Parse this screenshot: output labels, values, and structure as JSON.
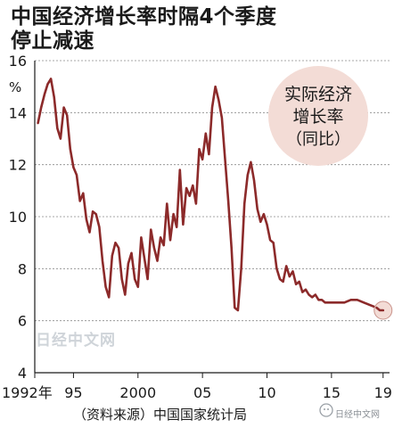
{
  "title": {
    "line1": "中国经济增长率时隔4个季度",
    "line2": "停止减速"
  },
  "source": "（资料来源）中国国家统计局",
  "watermarks": {
    "center": "日经中文网",
    "corner": "日经中文网"
  },
  "colors": {
    "line": "#8c2a2a",
    "bubble": "#f3dcd6",
    "endpoint": "#f3dcd6"
  },
  "chart_data": {
    "type": "line",
    "ylabel": "%",
    "ylim": [
      4,
      16
    ],
    "yticks": [
      4,
      6,
      8,
      10,
      12,
      14,
      16
    ],
    "xlim": [
      1992.0,
      2019.5
    ],
    "xticks": [
      {
        "value": 1992,
        "label": "1992年"
      },
      {
        "value": 1995,
        "label": "95"
      },
      {
        "value": 2000,
        "label": "2000"
      },
      {
        "value": 2005,
        "label": "05"
      },
      {
        "value": 2010,
        "label": "10"
      },
      {
        "value": 2015,
        "label": "15"
      },
      {
        "value": 2019,
        "label": "19"
      }
    ],
    "legend_bubble": {
      "lines": [
        "实际经济",
        "增长率",
        "（同比）"
      ],
      "placement": "top-right"
    },
    "series": [
      {
        "values": [
          [
            1992.25,
            13.6
          ],
          [
            1992.5,
            14.2
          ],
          [
            1992.75,
            14.7
          ],
          [
            1993.0,
            15.1
          ],
          [
            1993.25,
            15.3
          ],
          [
            1993.5,
            14.6
          ],
          [
            1993.75,
            13.4
          ],
          [
            1994.0,
            13.0
          ],
          [
            1994.25,
            14.2
          ],
          [
            1994.5,
            13.9
          ],
          [
            1994.75,
            12.6
          ],
          [
            1995.0,
            11.9
          ],
          [
            1995.25,
            11.6
          ],
          [
            1995.5,
            10.6
          ],
          [
            1995.75,
            10.9
          ],
          [
            1996.0,
            9.9
          ],
          [
            1996.25,
            9.4
          ],
          [
            1996.5,
            10.2
          ],
          [
            1996.75,
            10.1
          ],
          [
            1997.0,
            9.6
          ],
          [
            1997.25,
            8.3
          ],
          [
            1997.5,
            7.3
          ],
          [
            1997.75,
            6.9
          ],
          [
            1998.0,
            8.5
          ],
          [
            1998.25,
            9.0
          ],
          [
            1998.5,
            8.8
          ],
          [
            1998.75,
            7.6
          ],
          [
            1999.0,
            7.0
          ],
          [
            1999.25,
            8.2
          ],
          [
            1999.5,
            8.6
          ],
          [
            1999.75,
            7.6
          ],
          [
            2000.0,
            7.3
          ],
          [
            2000.25,
            9.2
          ],
          [
            2000.5,
            8.4
          ],
          [
            2000.75,
            7.6
          ],
          [
            2001.0,
            9.5
          ],
          [
            2001.25,
            8.8
          ],
          [
            2001.5,
            8.3
          ],
          [
            2001.75,
            9.2
          ],
          [
            2002.0,
            8.9
          ],
          [
            2002.25,
            10.5
          ],
          [
            2002.5,
            9.1
          ],
          [
            2002.75,
            10.1
          ],
          [
            2003.0,
            9.6
          ],
          [
            2003.25,
            11.8
          ],
          [
            2003.5,
            9.7
          ],
          [
            2003.75,
            11.1
          ],
          [
            2004.0,
            10.8
          ],
          [
            2004.25,
            11.2
          ],
          [
            2004.5,
            10.5
          ],
          [
            2004.75,
            12.6
          ],
          [
            2005.0,
            12.2
          ],
          [
            2005.25,
            13.2
          ],
          [
            2005.5,
            12.4
          ],
          [
            2005.75,
            14.2
          ],
          [
            2006.0,
            15.0
          ],
          [
            2006.25,
            14.5
          ],
          [
            2006.5,
            13.8
          ],
          [
            2006.75,
            12.2
          ],
          [
            2007.0,
            10.6
          ],
          [
            2007.25,
            8.8
          ],
          [
            2007.5,
            6.5
          ],
          [
            2007.75,
            6.4
          ],
          [
            2008.0,
            8.0
          ],
          [
            2008.25,
            10.5
          ],
          [
            2008.5,
            11.6
          ],
          [
            2008.75,
            12.1
          ],
          [
            2009.0,
            11.4
          ],
          [
            2009.25,
            10.3
          ],
          [
            2009.5,
            9.8
          ],
          [
            2009.75,
            10.1
          ],
          [
            2010.0,
            9.7
          ],
          [
            2010.25,
            9.1
          ],
          [
            2010.5,
            9.0
          ],
          [
            2010.75,
            8.0
          ],
          [
            2011.0,
            7.6
          ],
          [
            2011.25,
            7.5
          ],
          [
            2011.5,
            8.1
          ],
          [
            2011.75,
            7.7
          ],
          [
            2012.0,
            7.9
          ],
          [
            2012.25,
            7.4
          ],
          [
            2012.5,
            7.5
          ],
          [
            2012.75,
            7.1
          ],
          [
            2013.0,
            7.2
          ],
          [
            2013.25,
            7.0
          ],
          [
            2013.5,
            6.9
          ],
          [
            2013.75,
            7.0
          ],
          [
            2014.0,
            6.8
          ],
          [
            2014.25,
            6.8
          ],
          [
            2014.5,
            6.7
          ],
          [
            2015.0,
            6.7
          ],
          [
            2015.5,
            6.7
          ],
          [
            2016.0,
            6.7
          ],
          [
            2016.5,
            6.8
          ],
          [
            2017.0,
            6.8
          ],
          [
            2017.5,
            6.7
          ],
          [
            2018.0,
            6.6
          ],
          [
            2018.5,
            6.5
          ],
          [
            2018.75,
            6.4
          ],
          [
            2019.0,
            6.4
          ]
        ]
      }
    ]
  }
}
